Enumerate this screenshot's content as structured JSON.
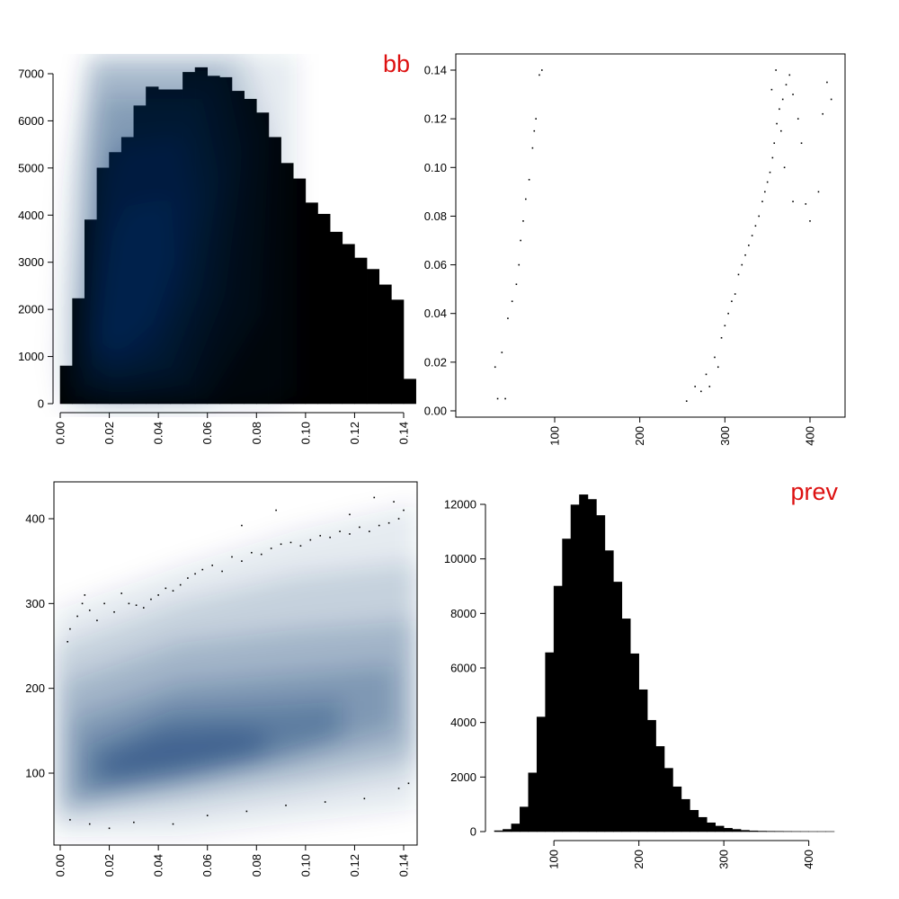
{
  "colors": {
    "bar": "#000000",
    "title": "#dd1111",
    "density": "#08306b",
    "point": "#000000"
  },
  "chart_data": [
    {
      "type": "bar",
      "panel": "top-left",
      "title": "bb",
      "title_placement": "top-right",
      "variable": "bb",
      "bin_width": 0.005,
      "x_start": 0.0,
      "values": [
        800,
        2230,
        3900,
        5000,
        5330,
        5650,
        6320,
        6720,
        6660,
        6660,
        7030,
        7130,
        6950,
        6920,
        6630,
        6460,
        6170,
        5650,
        5100,
        4770,
        4260,
        4020,
        3640,
        3380,
        3090,
        2850,
        2520,
        2200,
        520
      ],
      "xlim": [
        0.0,
        0.145
      ],
      "ylim": [
        0,
        7000
      ],
      "x_ticks": [
        0.0,
        0.02,
        0.04,
        0.06,
        0.08,
        0.1,
        0.12,
        0.14
      ],
      "x_tick_labels": [
        "0.00",
        "0.02",
        "0.04",
        "0.06",
        "0.08",
        "0.10",
        "0.12",
        "0.14"
      ],
      "y_ticks": [
        0,
        1000,
        2000,
        3000,
        4000,
        5000,
        6000,
        7000
      ],
      "y_tick_labels": [
        "0",
        "1000",
        "2000",
        "3000",
        "4000",
        "5000",
        "6000",
        "7000"
      ],
      "x_tick_rotation": "vertical"
    },
    {
      "type": "heatmap",
      "panel": "top-right",
      "x_variable": "prev",
      "y_variable": "bb",
      "xlim": [
        25,
        440
      ],
      "ylim": [
        -0.003,
        0.145
      ],
      "x_ticks": [
        100,
        200,
        300,
        400
      ],
      "x_tick_labels": [
        "100",
        "200",
        "300",
        "400"
      ],
      "y_ticks": [
        0.0,
        0.02,
        0.04,
        0.06,
        0.08,
        0.1,
        0.12,
        0.14
      ],
      "y_tick_labels": [
        "0.00",
        "0.02",
        "0.04",
        "0.06",
        "0.08",
        "0.10",
        "0.12",
        "0.14"
      ],
      "x_tick_rotation": "vertical",
      "framed": true,
      "outlier_points": [
        [
          82,
          0.138
        ],
        [
          85,
          0.14
        ],
        [
          78,
          0.12
        ],
        [
          76,
          0.115
        ],
        [
          74,
          0.108
        ],
        [
          70,
          0.095
        ],
        [
          66,
          0.087
        ],
        [
          63,
          0.078
        ],
        [
          60,
          0.07
        ],
        [
          58,
          0.06
        ],
        [
          55,
          0.052
        ],
        [
          50,
          0.045
        ],
        [
          45,
          0.038
        ],
        [
          38,
          0.024
        ],
        [
          30,
          0.018
        ],
        [
          33,
          0.005
        ],
        [
          42,
          0.005
        ],
        [
          255,
          0.004
        ],
        [
          265,
          0.01
        ],
        [
          272,
          0.008
        ],
        [
          278,
          0.015
        ],
        [
          282,
          0.01
        ],
        [
          288,
          0.022
        ],
        [
          292,
          0.018
        ],
        [
          296,
          0.03
        ],
        [
          300,
          0.035
        ],
        [
          304,
          0.04
        ],
        [
          308,
          0.045
        ],
        [
          312,
          0.048
        ],
        [
          316,
          0.056
        ],
        [
          320,
          0.06
        ],
        [
          324,
          0.064
        ],
        [
          328,
          0.068
        ],
        [
          332,
          0.072
        ],
        [
          336,
          0.076
        ],
        [
          340,
          0.08
        ],
        [
          344,
          0.086
        ],
        [
          347,
          0.09
        ],
        [
          350,
          0.094
        ],
        [
          353,
          0.098
        ],
        [
          356,
          0.104
        ],
        [
          358,
          0.11
        ],
        [
          361,
          0.118
        ],
        [
          364,
          0.124
        ],
        [
          368,
          0.128
        ],
        [
          372,
          0.134
        ],
        [
          376,
          0.138
        ],
        [
          380,
          0.13
        ],
        [
          386,
          0.12
        ],
        [
          390,
          0.11
        ],
        [
          395,
          0.085
        ],
        [
          400,
          0.078
        ],
        [
          410,
          0.09
        ],
        [
          415,
          0.122
        ],
        [
          420,
          0.135
        ],
        [
          425,
          0.128
        ],
        [
          360,
          0.14
        ],
        [
          355,
          0.132
        ],
        [
          370,
          0.1
        ],
        [
          380,
          0.086
        ],
        [
          366,
          0.115
        ]
      ]
    },
    {
      "type": "heatmap",
      "panel": "bottom-left",
      "x_variable": "bb",
      "y_variable": "prev",
      "xlim": [
        -0.003,
        0.145
      ],
      "ylim": [
        25,
        440
      ],
      "x_ticks": [
        0.0,
        0.02,
        0.04,
        0.06,
        0.08,
        0.1,
        0.12,
        0.14
      ],
      "x_tick_labels": [
        "0.00",
        "0.02",
        "0.04",
        "0.06",
        "0.08",
        "0.10",
        "0.12",
        "0.14"
      ],
      "y_ticks": [
        100,
        200,
        300,
        400
      ],
      "y_tick_labels": [
        "100",
        "200",
        "300",
        "400"
      ],
      "x_tick_rotation": "vertical",
      "framed": true,
      "outlier_points": [
        [
          0.003,
          255
        ],
        [
          0.004,
          270
        ],
        [
          0.007,
          285
        ],
        [
          0.009,
          300
        ],
        [
          0.01,
          310
        ],
        [
          0.012,
          292
        ],
        [
          0.015,
          280
        ],
        [
          0.018,
          300
        ],
        [
          0.022,
          290
        ],
        [
          0.025,
          312
        ],
        [
          0.028,
          300
        ],
        [
          0.031,
          298
        ],
        [
          0.034,
          295
        ],
        [
          0.037,
          305
        ],
        [
          0.04,
          310
        ],
        [
          0.043,
          318
        ],
        [
          0.046,
          315
        ],
        [
          0.049,
          322
        ],
        [
          0.052,
          330
        ],
        [
          0.055,
          335
        ],
        [
          0.058,
          340
        ],
        [
          0.062,
          345
        ],
        [
          0.066,
          338
        ],
        [
          0.07,
          355
        ],
        [
          0.074,
          350
        ],
        [
          0.078,
          360
        ],
        [
          0.082,
          358
        ],
        [
          0.086,
          365
        ],
        [
          0.09,
          370
        ],
        [
          0.094,
          372
        ],
        [
          0.098,
          368
        ],
        [
          0.102,
          375
        ],
        [
          0.106,
          380
        ],
        [
          0.11,
          378
        ],
        [
          0.114,
          385
        ],
        [
          0.118,
          382
        ],
        [
          0.122,
          390
        ],
        [
          0.126,
          385
        ],
        [
          0.13,
          392
        ],
        [
          0.134,
          395
        ],
        [
          0.138,
          400
        ],
        [
          0.14,
          410
        ],
        [
          0.136,
          420
        ],
        [
          0.128,
          425
        ],
        [
          0.118,
          405
        ],
        [
          0.074,
          392
        ],
        [
          0.088,
          410
        ],
        [
          0.004,
          45
        ],
        [
          0.012,
          40
        ],
        [
          0.02,
          35
        ],
        [
          0.03,
          42
        ],
        [
          0.046,
          40
        ],
        [
          0.06,
          50
        ],
        [
          0.076,
          55
        ],
        [
          0.092,
          62
        ],
        [
          0.108,
          66
        ],
        [
          0.124,
          70
        ],
        [
          0.138,
          82
        ],
        [
          0.142,
          88
        ]
      ]
    },
    {
      "type": "bar",
      "panel": "bottom-right",
      "title": "prev",
      "title_placement": "top-right",
      "variable": "prev",
      "bin_width": 10,
      "x_start": 30,
      "values": [
        30,
        80,
        280,
        900,
        2150,
        4200,
        6560,
        9000,
        10730,
        11980,
        12350,
        12180,
        11590,
        10300,
        9150,
        7800,
        6520,
        5200,
        4080,
        3120,
        2320,
        1640,
        1180,
        780,
        520,
        320,
        200,
        120,
        80,
        45,
        25,
        15,
        10,
        8,
        5,
        3,
        2,
        1,
        1,
        1
      ],
      "xlim": [
        30,
        430
      ],
      "ylim": [
        0,
        12000
      ],
      "x_ticks": [
        100,
        200,
        300,
        400
      ],
      "x_tick_labels": [
        "100",
        "200",
        "300",
        "400"
      ],
      "y_ticks": [
        0,
        2000,
        4000,
        6000,
        8000,
        10000,
        12000
      ],
      "y_tick_labels": [
        "0",
        "2000",
        "4000",
        "6000",
        "8000",
        "10000",
        "12000"
      ],
      "x_tick_rotation": "vertical"
    }
  ]
}
